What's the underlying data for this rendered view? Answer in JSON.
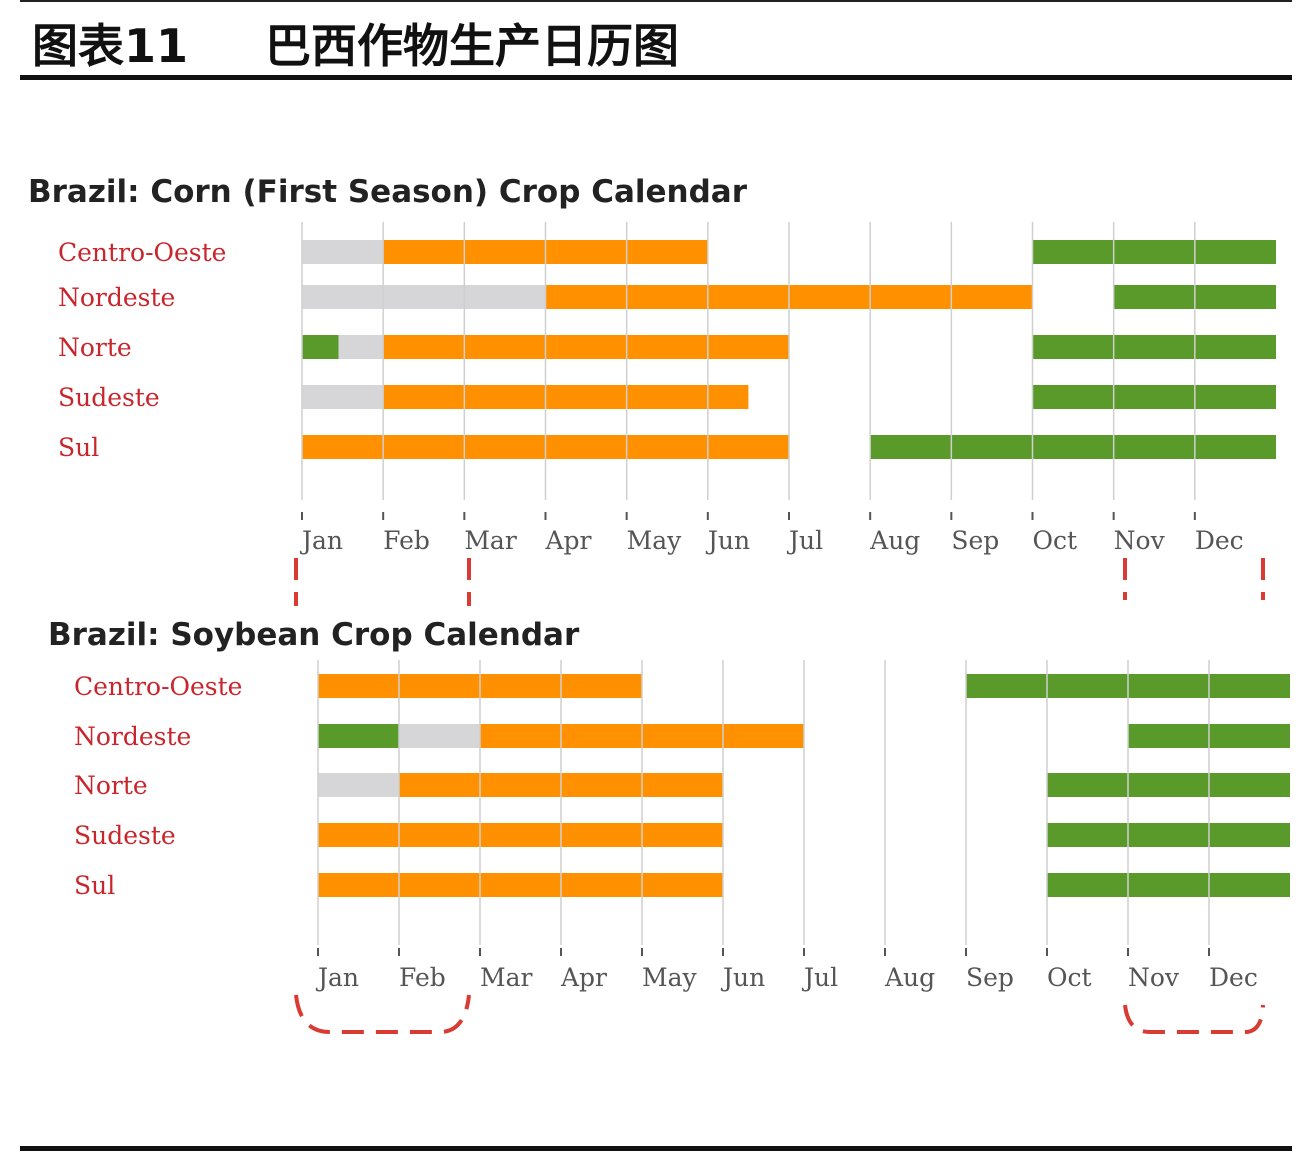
{
  "header": {
    "label": "图表11",
    "title": "巴西作物生产日历图"
  },
  "chart_data": [
    {
      "type": "gantt",
      "title": "Brazil: Corn (First Season) Crop Calendar",
      "xlim": [
        0,
        12
      ],
      "xticks": [
        {
          "value": 0,
          "label": "Jan"
        },
        {
          "value": 1,
          "label": "Feb"
        },
        {
          "value": 2,
          "label": "Mar"
        },
        {
          "value": 3,
          "label": "Apr"
        },
        {
          "value": 4,
          "label": "May"
        },
        {
          "value": 5,
          "label": "Jun"
        },
        {
          "value": 6,
          "label": "Jul"
        },
        {
          "value": 7,
          "label": "Aug"
        },
        {
          "value": 8,
          "label": "Sep"
        },
        {
          "value": 9,
          "label": "Oct"
        },
        {
          "value": 10,
          "label": "Nov"
        },
        {
          "value": 11,
          "label": "Dec"
        }
      ],
      "grid": true,
      "rows": [
        {
          "name": "Centro-Oeste",
          "segments": [
            {
              "start": 0,
              "end": 1,
              "color": "#d6d6d9"
            },
            {
              "start": 1,
              "end": 5,
              "color": "#ff9000"
            },
            {
              "start": 9,
              "end": 12,
              "color": "#5a9a2a"
            }
          ]
        },
        {
          "name": "Nordeste",
          "segments": [
            {
              "start": 0,
              "end": 3,
              "color": "#d6d6d9"
            },
            {
              "start": 3,
              "end": 9,
              "color": "#ff9000"
            },
            {
              "start": 10,
              "end": 12,
              "color": "#5a9a2a"
            }
          ]
        },
        {
          "name": "Norte",
          "segments": [
            {
              "start": 0,
              "end": 0.45,
              "color": "#5a9a2a"
            },
            {
              "start": 0.45,
              "end": 1,
              "color": "#d6d6d9"
            },
            {
              "start": 1,
              "end": 6,
              "color": "#ff9000"
            },
            {
              "start": 9,
              "end": 12,
              "color": "#5a9a2a"
            }
          ]
        },
        {
          "name": "Sudeste",
          "segments": [
            {
              "start": 0,
              "end": 1,
              "color": "#d6d6d9"
            },
            {
              "start": 1,
              "end": 5.5,
              "color": "#ff9000"
            },
            {
              "start": 9,
              "end": 12,
              "color": "#5a9a2a"
            }
          ]
        },
        {
          "name": "Sul",
          "segments": [
            {
              "start": 0,
              "end": 6,
              "color": "#ff9000"
            },
            {
              "start": 7,
              "end": 12,
              "color": "#5a9a2a"
            }
          ]
        }
      ]
    },
    {
      "type": "gantt",
      "title": "Brazil: Soybean Crop Calendar",
      "xlim": [
        0,
        12
      ],
      "xticks": [
        {
          "value": 0,
          "label": "Jan"
        },
        {
          "value": 1,
          "label": "Feb"
        },
        {
          "value": 2,
          "label": "Mar"
        },
        {
          "value": 3,
          "label": "Apr"
        },
        {
          "value": 4,
          "label": "May"
        },
        {
          "value": 5,
          "label": "Jun"
        },
        {
          "value": 6,
          "label": "Jul"
        },
        {
          "value": 7,
          "label": "Aug"
        },
        {
          "value": 8,
          "label": "Sep"
        },
        {
          "value": 9,
          "label": "Oct"
        },
        {
          "value": 10,
          "label": "Nov"
        },
        {
          "value": 11,
          "label": "Dec"
        }
      ],
      "grid": true,
      "rows": [
        {
          "name": "Centro-Oeste",
          "segments": [
            {
              "start": 0,
              "end": 4,
              "color": "#ff9000"
            },
            {
              "start": 8,
              "end": 12,
              "color": "#5a9a2a"
            }
          ]
        },
        {
          "name": "Nordeste",
          "segments": [
            {
              "start": 0,
              "end": 1,
              "color": "#5a9a2a"
            },
            {
              "start": 1,
              "end": 2,
              "color": "#d6d6d9"
            },
            {
              "start": 2,
              "end": 6,
              "color": "#ff9000"
            },
            {
              "start": 10,
              "end": 12,
              "color": "#5a9a2a"
            }
          ]
        },
        {
          "name": "Norte",
          "segments": [
            {
              "start": 0,
              "end": 1,
              "color": "#d6d6d9"
            },
            {
              "start": 1,
              "end": 5,
              "color": "#ff9000"
            },
            {
              "start": 9,
              "end": 12,
              "color": "#5a9a2a"
            }
          ]
        },
        {
          "name": "Sudeste",
          "segments": [
            {
              "start": 0,
              "end": 5,
              "color": "#ff9000"
            },
            {
              "start": 9,
              "end": 12,
              "color": "#5a9a2a"
            }
          ]
        },
        {
          "name": "Sul",
          "segments": [
            {
              "start": 0,
              "end": 5,
              "color": "#ff9000"
            },
            {
              "start": 9,
              "end": 12,
              "color": "#5a9a2a"
            }
          ]
        }
      ]
    }
  ]
}
